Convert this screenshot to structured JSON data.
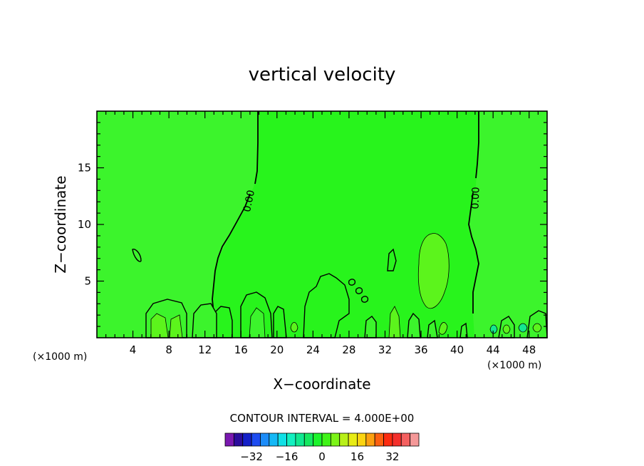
{
  "chart_data": {
    "type": "contour",
    "title": "vertical velocity",
    "xlabel": "X−coordinate",
    "ylabel": "Z−coordinate",
    "x_units_left": "(×1000 m)",
    "x_units_right": "(×1000 m)",
    "xlim": [
      0,
      50
    ],
    "ylim": [
      0,
      20
    ],
    "x_ticks": [
      4,
      8,
      12,
      16,
      20,
      24,
      28,
      32,
      36,
      40,
      44,
      48
    ],
    "y_ticks": [
      5,
      10,
      15
    ],
    "contour_interval_text": "CONTOUR INTERVAL = 4.000E+00",
    "contour_labels": [
      "0.00",
      "0.00"
    ],
    "colorbar": {
      "colors": [
        "#7a18b0",
        "#2b0c9c",
        "#1420c8",
        "#1e4cf0",
        "#1c8cf8",
        "#14b8f6",
        "#10e0e6",
        "#12f0c0",
        "#10e890",
        "#14e860",
        "#1cf42c",
        "#40f418",
        "#7cf418",
        "#b8f018",
        "#e8ec14",
        "#fcd410",
        "#fca010",
        "#fc6010",
        "#fc2c10",
        "#f4302c",
        "#f46060",
        "#f49898"
      ],
      "tick_labels": [
        "−32",
        "−16",
        "0",
        "16",
        "32"
      ],
      "tick_values": [
        -32,
        -16,
        0,
        16,
        32
      ],
      "min": -44,
      "max": 44
    }
  }
}
